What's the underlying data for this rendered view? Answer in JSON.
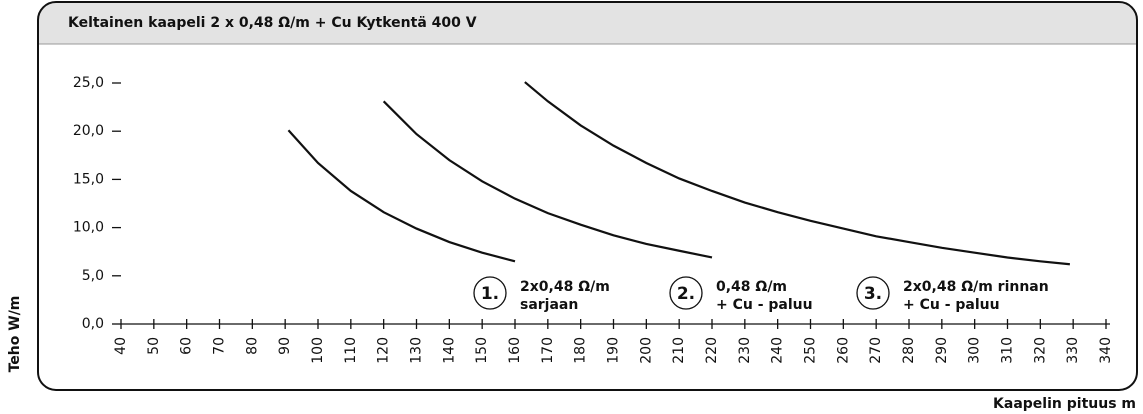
{
  "chart_data": {
    "type": "line",
    "title": "Keltainen kaapeli 2 x 0,48 Ω/m + Cu  Kytkentä 400 V",
    "y_label": "Teho W/m",
    "x_label": "Kaapelin pituus m",
    "xlim": [
      40,
      340
    ],
    "xticks": [
      40,
      50,
      60,
      70,
      80,
      90,
      100,
      110,
      120,
      130,
      140,
      150,
      160,
      170,
      180,
      190,
      200,
      210,
      220,
      230,
      240,
      250,
      260,
      270,
      280,
      290,
      300,
      310,
      320,
      330,
      340
    ],
    "ylim": [
      0,
      25
    ],
    "yticks": [
      {
        "value": 0,
        "label": "0,0"
      },
      {
        "value": 5,
        "label": "5,0"
      },
      {
        "value": 10,
        "label": "10,0"
      },
      {
        "value": 15,
        "label": "15,0"
      },
      {
        "value": 20,
        "label": "20,0"
      },
      {
        "value": 25,
        "label": "25,0"
      }
    ],
    "series": [
      {
        "number": "1.",
        "name": [
          "2x0,48 Ω/m",
          "sarjaan"
        ],
        "color": "#111111",
        "x": [
          91,
          100,
          110,
          120,
          130,
          140,
          150,
          160
        ],
        "values": [
          20.1,
          16.7,
          13.8,
          11.6,
          9.9,
          8.5,
          7.4,
          6.5
        ]
      },
      {
        "number": "2.",
        "name": [
          "0,48 Ω/m",
          "+ Cu - paluu"
        ],
        "color": "#111111",
        "x": [
          120,
          130,
          140,
          150,
          160,
          170,
          180,
          190,
          200,
          210,
          220
        ],
        "values": [
          23.1,
          19.7,
          17.0,
          14.8,
          13.0,
          11.5,
          10.3,
          9.2,
          8.3,
          7.6,
          6.9
        ]
      },
      {
        "number": "3.",
        "name": [
          "2x0,48 Ω/m rinnan",
          "+ Cu - paluu"
        ],
        "color": "#111111",
        "x": [
          163,
          170,
          180,
          190,
          200,
          210,
          220,
          230,
          240,
          250,
          260,
          270,
          280,
          290,
          300,
          310,
          320,
          329
        ],
        "values": [
          25.1,
          23.1,
          20.6,
          18.5,
          16.7,
          15.1,
          13.8,
          12.6,
          11.6,
          10.7,
          9.9,
          9.1,
          8.5,
          7.9,
          7.4,
          6.9,
          6.5,
          6.2
        ]
      }
    ]
  }
}
